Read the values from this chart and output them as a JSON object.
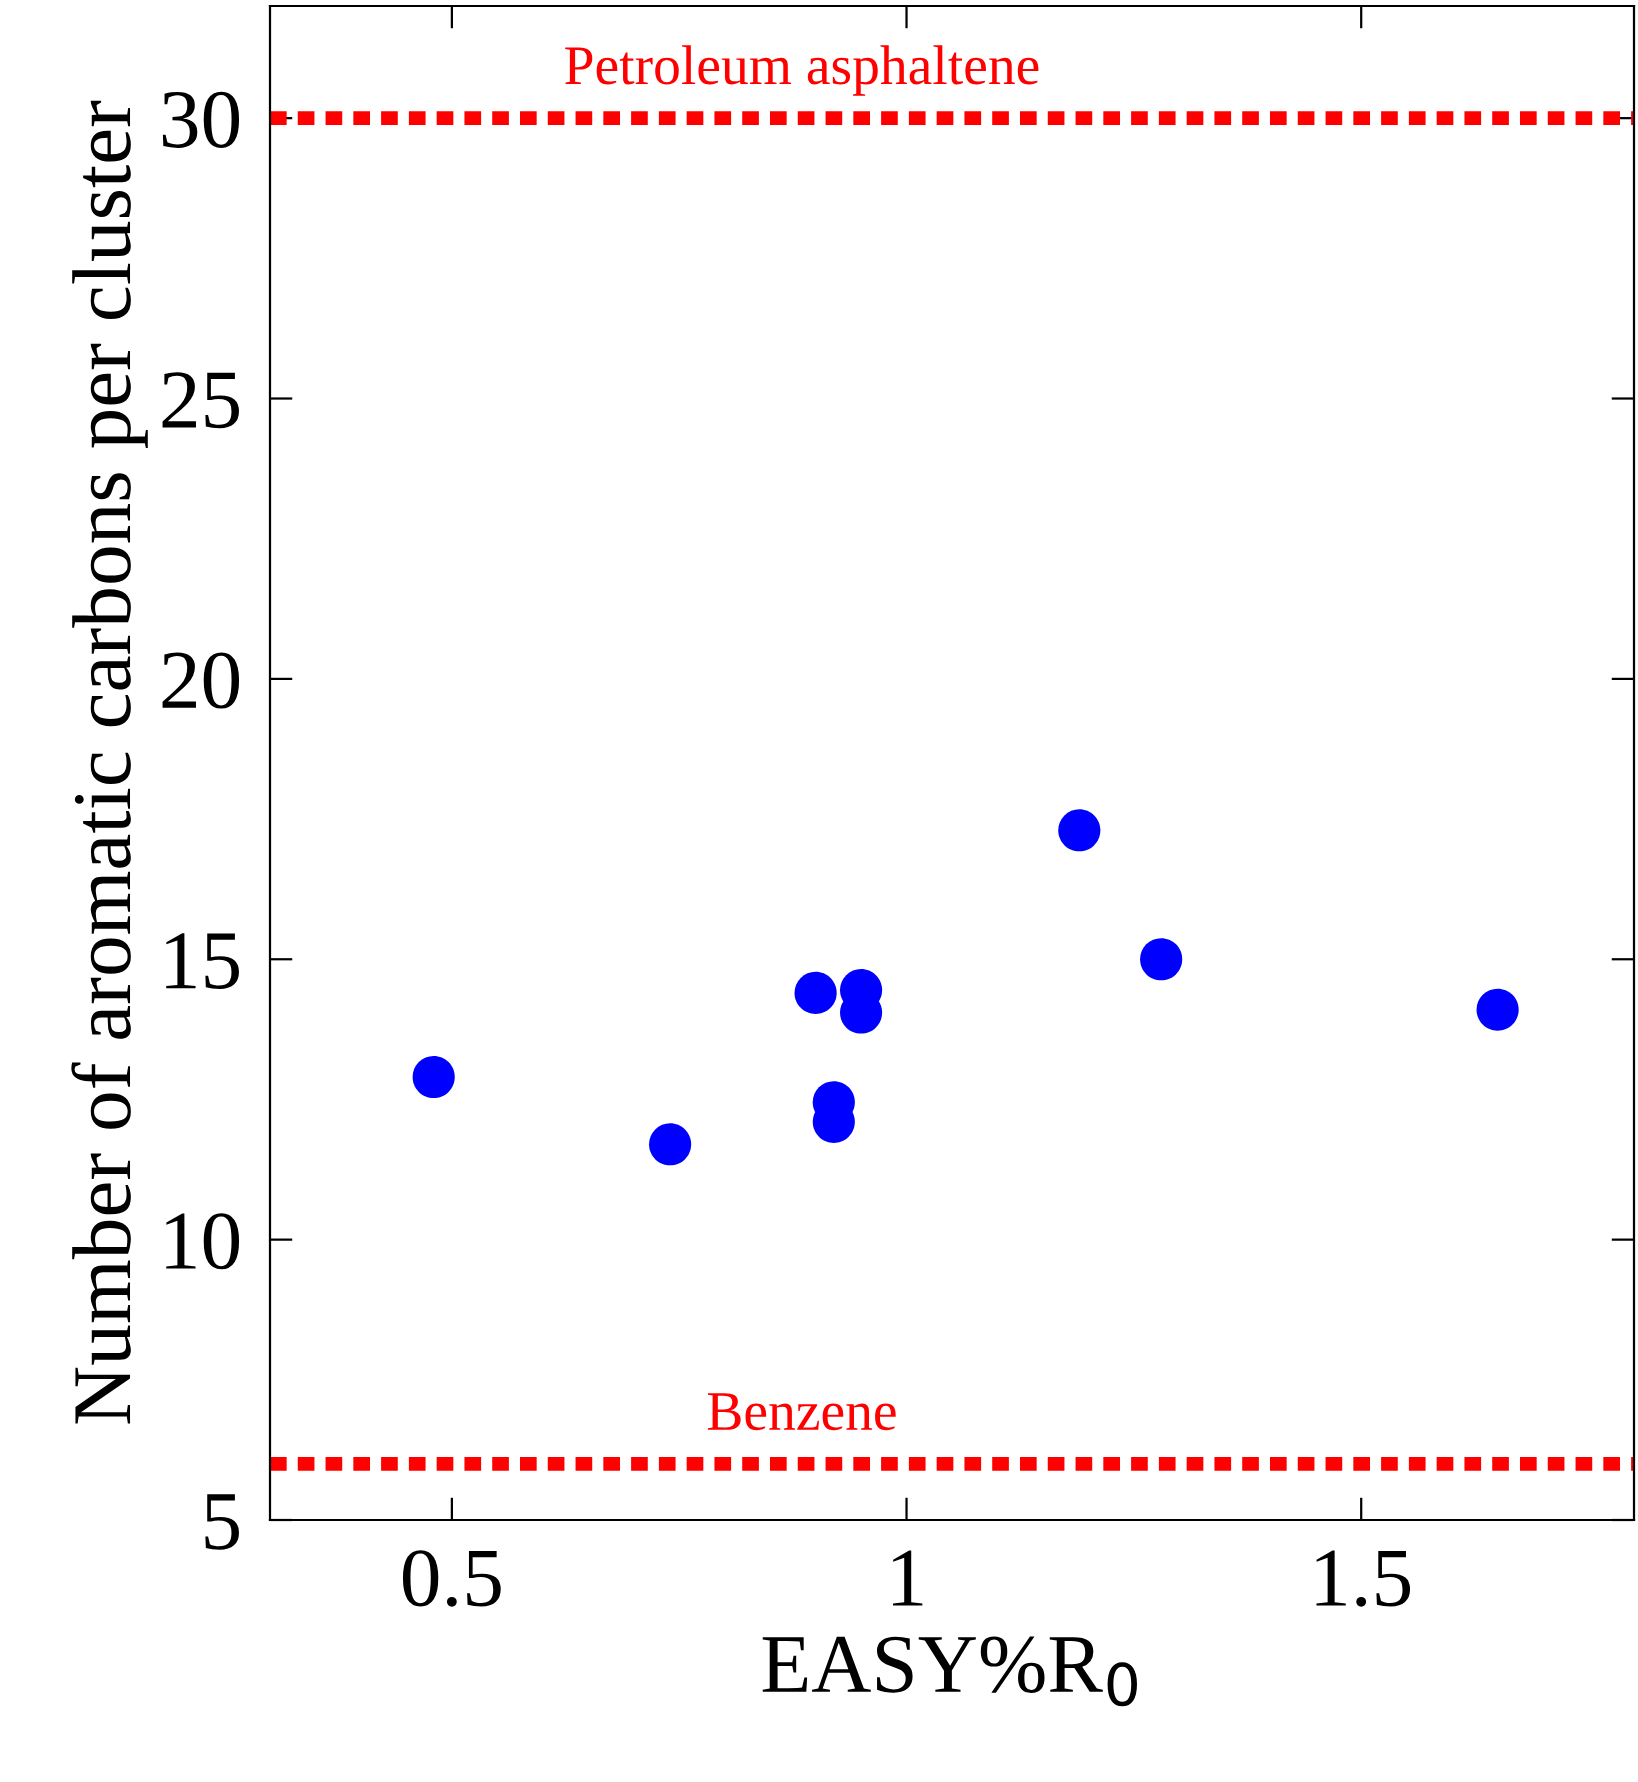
{
  "chart_data": {
    "type": "scatter",
    "xlabel": "EASY%R$_{0}$",
    "ylabel": "Number of aromatic carbons per cluster",
    "x": [
      0.48,
      0.74,
      0.9,
      0.95,
      0.95,
      0.92,
      0.92,
      1.19,
      1.28,
      1.65
    ],
    "values": [
      12.9,
      11.7,
      14.4,
      14.45,
      14.05,
      12.45,
      12.1,
      17.3,
      15.0,
      14.1
    ],
    "color": "#0000ff",
    "marker": "circle",
    "xlim": [
      0.3,
      1.8
    ],
    "xticks": [
      0.5,
      1,
      1.5
    ],
    "ylim": [
      5,
      32
    ],
    "yticks": [
      5,
      10,
      15,
      20,
      25,
      30
    ],
    "grid": false,
    "legend": false,
    "ref_lines": [
      {
        "axis": "y",
        "value": 30,
        "label": "Petroleum asphaltene",
        "color": "#ff0000",
        "line_style": "dotted"
      },
      {
        "axis": "y",
        "value": 6,
        "label": "Benzene",
        "color": "#ff0000",
        "line_style": "dotted"
      }
    ]
  }
}
